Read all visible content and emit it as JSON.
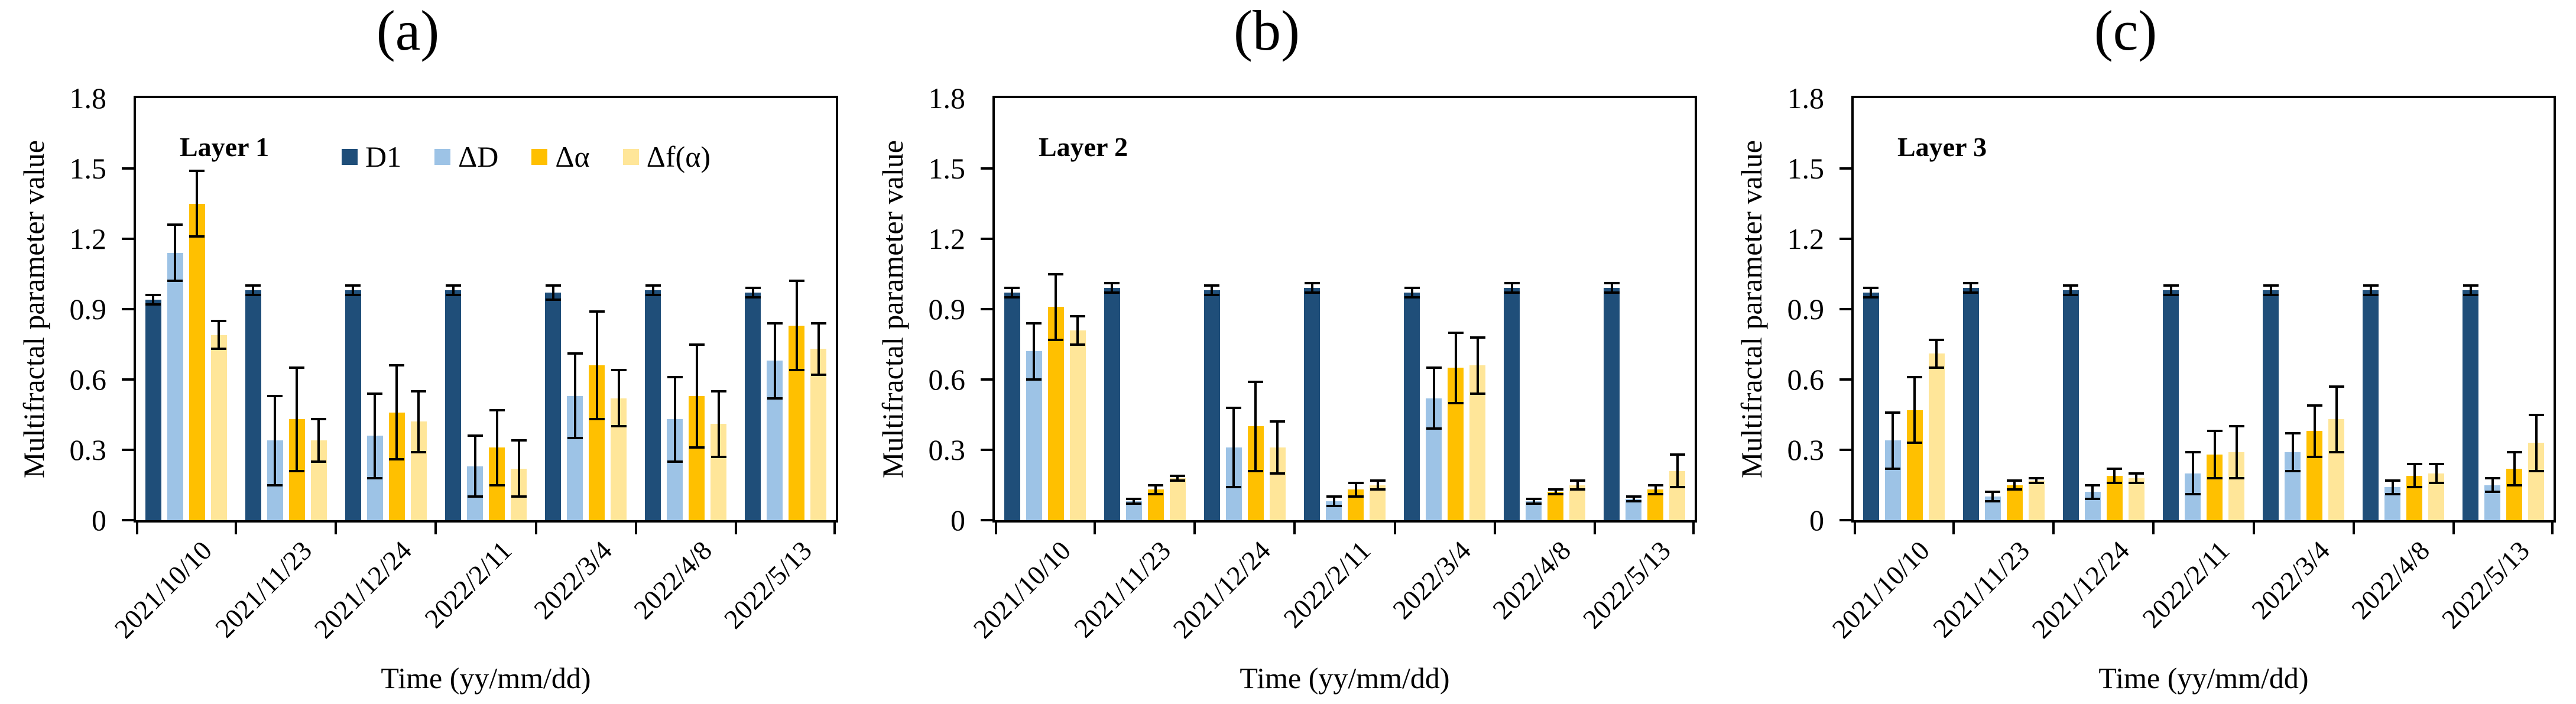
{
  "figure": {
    "y_axis_label": "Multifractal parameter value",
    "x_axis_label": "Time (yy/mm/dd)",
    "y_ticks": [
      "1.8",
      "1.5",
      "1.2",
      "0.9",
      "0.6",
      "0.3",
      "0"
    ],
    "legend": [
      "D1",
      "ΔD",
      "Δα",
      "Δf(α)"
    ],
    "colors": {
      "D1": "#1F4E79",
      "delta_D": "#9DC3E6",
      "delta_alpha": "#FFC000",
      "delta_f_alpha": "#FFE699",
      "axis": "#000000",
      "background": "#FFFFFF"
    }
  },
  "chart_data": [
    {
      "type": "bar",
      "panel_label": "(a)",
      "layer_label": "Layer 1",
      "legend_visible": true,
      "xlabel": "Time (yy/mm/dd)",
      "ylabel": "Multifractal parameter value",
      "ylim": [
        0,
        1.8
      ],
      "ytick_step": 0.3,
      "grid": false,
      "categories": [
        "2021/10/10",
        "2021/11/23",
        "2021/12/24",
        "2022/2/11",
        "2022/3/4",
        "2022/4/8",
        "2022/5/13"
      ],
      "series": [
        {
          "name": "D1",
          "color": "#1F4E79",
          "values": [
            0.94,
            0.98,
            0.98,
            0.98,
            0.97,
            0.98,
            0.97
          ],
          "errors": [
            0.02,
            0.02,
            0.02,
            0.02,
            0.03,
            0.02,
            0.02
          ]
        },
        {
          "name": "ΔD",
          "color": "#9DC3E6",
          "values": [
            1.14,
            0.34,
            0.36,
            0.23,
            0.53,
            0.43,
            0.68
          ],
          "errors": [
            0.12,
            0.19,
            0.18,
            0.13,
            0.18,
            0.18,
            0.16
          ]
        },
        {
          "name": "Δα",
          "color": "#FFC000",
          "values": [
            1.35,
            0.43,
            0.46,
            0.31,
            0.66,
            0.53,
            0.83
          ],
          "errors": [
            0.14,
            0.22,
            0.2,
            0.16,
            0.23,
            0.22,
            0.19
          ]
        },
        {
          "name": "Δf(α)",
          "color": "#FFE699",
          "values": [
            0.79,
            0.34,
            0.42,
            0.22,
            0.52,
            0.41,
            0.73
          ],
          "errors": [
            0.06,
            0.09,
            0.13,
            0.12,
            0.12,
            0.14,
            0.11
          ]
        }
      ]
    },
    {
      "type": "bar",
      "panel_label": "(b)",
      "layer_label": "Layer 2",
      "legend_visible": false,
      "xlabel": "Time (yy/mm/dd)",
      "ylabel": "Multifractal parameter value",
      "ylim": [
        0,
        1.8
      ],
      "ytick_step": 0.3,
      "grid": false,
      "categories": [
        "2021/10/10",
        "2021/11/23",
        "2021/12/24",
        "2022/2/11",
        "2022/3/4",
        "2022/4/8",
        "2022/5/13"
      ],
      "series": [
        {
          "name": "D1",
          "color": "#1F4E79",
          "values": [
            0.97,
            0.99,
            0.98,
            0.99,
            0.97,
            0.99,
            0.99
          ],
          "errors": [
            0.02,
            0.02,
            0.02,
            0.02,
            0.02,
            0.02,
            0.02
          ]
        },
        {
          "name": "ΔD",
          "color": "#9DC3E6",
          "values": [
            0.72,
            0.08,
            0.31,
            0.08,
            0.52,
            0.08,
            0.09
          ],
          "errors": [
            0.12,
            0.01,
            0.17,
            0.02,
            0.13,
            0.01,
            0.01
          ]
        },
        {
          "name": "Δα",
          "color": "#FFC000",
          "values": [
            0.91,
            0.13,
            0.4,
            0.13,
            0.65,
            0.12,
            0.13
          ],
          "errors": [
            0.14,
            0.02,
            0.19,
            0.03,
            0.15,
            0.01,
            0.02
          ]
        },
        {
          "name": "Δf(α)",
          "color": "#FFE699",
          "values": [
            0.81,
            0.18,
            0.31,
            0.15,
            0.66,
            0.15,
            0.21
          ],
          "errors": [
            0.06,
            0.01,
            0.11,
            0.02,
            0.12,
            0.02,
            0.07
          ]
        }
      ]
    },
    {
      "type": "bar",
      "panel_label": "(c)",
      "layer_label": "Layer 3",
      "legend_visible": false,
      "xlabel": "Time (yy/mm/dd)",
      "ylabel": "Multifractal parameter value",
      "ylim": [
        0,
        1.8
      ],
      "ytick_step": 0.3,
      "grid": false,
      "categories": [
        "2021/10/10",
        "2021/11/23",
        "2021/12/24",
        "2022/2/11",
        "2022/3/4",
        "2022/4/8",
        "2022/5/13"
      ],
      "series": [
        {
          "name": "D1",
          "color": "#1F4E79",
          "values": [
            0.97,
            0.99,
            0.98,
            0.98,
            0.98,
            0.98,
            0.98
          ],
          "errors": [
            0.02,
            0.02,
            0.02,
            0.02,
            0.02,
            0.02,
            0.02
          ]
        },
        {
          "name": "ΔD",
          "color": "#9DC3E6",
          "values": [
            0.34,
            0.1,
            0.12,
            0.2,
            0.29,
            0.14,
            0.15
          ],
          "errors": [
            0.12,
            0.02,
            0.03,
            0.09,
            0.08,
            0.03,
            0.03
          ]
        },
        {
          "name": "Δα",
          "color": "#FFC000",
          "values": [
            0.47,
            0.15,
            0.19,
            0.28,
            0.38,
            0.19,
            0.22
          ],
          "errors": [
            0.14,
            0.02,
            0.03,
            0.1,
            0.11,
            0.05,
            0.07
          ]
        },
        {
          "name": "Δf(α)",
          "color": "#FFE699",
          "values": [
            0.71,
            0.17,
            0.18,
            0.29,
            0.43,
            0.2,
            0.33
          ],
          "errors": [
            0.06,
            0.01,
            0.02,
            0.11,
            0.14,
            0.04,
            0.12
          ]
        }
      ]
    }
  ]
}
